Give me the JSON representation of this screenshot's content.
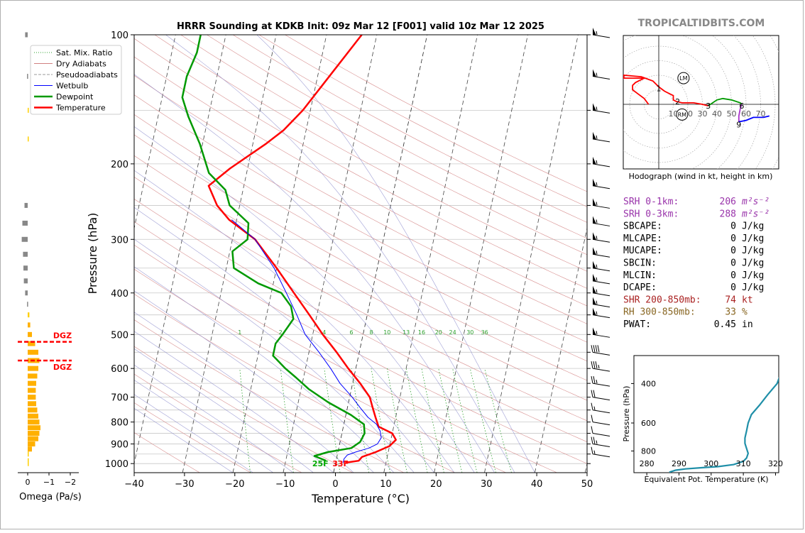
{
  "title": "HRRR Sounding at KDKB Init: 09z Mar 12 [F001] valid 10z Mar 12 2025",
  "watermark": "TROPICALTIDBITS.COM",
  "chart_data": [
    {
      "type": "line",
      "name": "skew-t",
      "xlabel": "Temperature (°C)",
      "ylabel": "Pressure (hPa)",
      "xlim": [
        -40,
        50
      ],
      "ylim": [
        1050,
        100
      ],
      "y_scale": "log",
      "x_ticks": [
        "−40",
        "−30",
        "−20",
        "−10",
        "0",
        "10",
        "20",
        "30",
        "40",
        "50"
      ],
      "y_ticks": [
        "100",
        "200",
        "300",
        "400",
        "500",
        "600",
        "700",
        "800",
        "900",
        "1000"
      ],
      "legend": {
        "placement": "top-left",
        "entries": [
          {
            "label": "Sat. Mix. Ratio",
            "color": "#2ca02c",
            "style": "dotted"
          },
          {
            "label": "Dry Adiabats",
            "color": "#d08080",
            "style": "solid"
          },
          {
            "label": "Pseudoadiabats",
            "color": "#999999",
            "style": "dashed"
          },
          {
            "label": "Wetbulb",
            "color": "#0000ff",
            "style": "solid"
          },
          {
            "label": "Dewpoint",
            "color": "#009900",
            "style": "bold"
          },
          {
            "label": "Temperature",
            "color": "#ff0000",
            "style": "bold"
          }
        ]
      },
      "series": [
        {
          "name": "Temperature",
          "color": "#ff0000",
          "points": [
            [
              2.0,
              995
            ],
            [
              4.5,
              985
            ],
            [
              5.0,
              965
            ],
            [
              7.5,
              940
            ],
            [
              10.0,
              910
            ],
            [
              11.0,
              880
            ],
            [
              10.0,
              850
            ],
            [
              7.0,
              820
            ],
            [
              6.0,
              780
            ],
            [
              5.0,
              740
            ],
            [
              4.0,
              700
            ],
            [
              1.5,
              650
            ],
            [
              -1.5,
              600
            ],
            [
              -4.5,
              550
            ],
            [
              -8.0,
              500
            ],
            [
              -11.5,
              450
            ],
            [
              -15.5,
              400
            ],
            [
              -20.0,
              350
            ],
            [
              -25.5,
              300
            ],
            [
              -31.5,
              270
            ],
            [
              -34.5,
              250
            ],
            [
              -37.0,
              225
            ],
            [
              -33.5,
              205
            ],
            [
              -27.5,
              180
            ],
            [
              -24.5,
              167
            ],
            [
              -21.5,
              150
            ],
            [
              -18.5,
              130
            ],
            [
              -15.0,
              110
            ],
            [
              -13.0,
              100
            ]
          ]
        },
        {
          "name": "Dewpoint",
          "color": "#009900",
          "points": [
            [
              -2.0,
              985
            ],
            [
              -4.5,
              960
            ],
            [
              -2.0,
              940
            ],
            [
              2.5,
              920
            ],
            [
              4.0,
              890
            ],
            [
              4.5,
              850
            ],
            [
              4.0,
              810
            ],
            [
              1.0,
              770
            ],
            [
              -4.0,
              720
            ],
            [
              -8.5,
              670
            ],
            [
              -11.5,
              630
            ],
            [
              -14.0,
              600
            ],
            [
              -17.0,
              560
            ],
            [
              -17.0,
              525
            ],
            [
              -16.0,
              500
            ],
            [
              -14.5,
              460
            ],
            [
              -15.5,
              430
            ],
            [
              -18.0,
              400
            ],
            [
              -23.0,
              380
            ],
            [
              -28.5,
              350
            ],
            [
              -29.5,
              320
            ],
            [
              -27.0,
              300
            ],
            [
              -27.5,
              275
            ],
            [
              -32.0,
              250
            ],
            [
              -33.5,
              230
            ],
            [
              -37.5,
              210
            ],
            [
              -40.5,
              180
            ],
            [
              -44.0,
              155
            ],
            [
              -46.0,
              140
            ],
            [
              -46.0,
              125
            ],
            [
              -45.0,
              110
            ],
            [
              -45.0,
              100
            ]
          ]
        },
        {
          "name": "Wetbulb",
          "color": "#0000ff",
          "points": [
            [
              1.5,
              995
            ],
            [
              1.5,
              975
            ],
            [
              2.0,
              955
            ],
            [
              3.5,
              940
            ],
            [
              6.0,
              920
            ],
            [
              7.5,
              900
            ],
            [
              8.0,
              870
            ],
            [
              7.5,
              840
            ],
            [
              6.5,
              810
            ],
            [
              4.5,
              780
            ],
            [
              2.5,
              740
            ],
            [
              0.5,
              700
            ],
            [
              -2.5,
              650
            ],
            [
              -5.0,
              600
            ],
            [
              -8.0,
              550
            ],
            [
              -11.5,
              500
            ],
            [
              -14.0,
              450
            ],
            [
              -17.0,
              400
            ],
            [
              -20.5,
              350
            ],
            [
              -25.5,
              300
            ],
            [
              -31.0,
              270
            ]
          ]
        }
      ],
      "annotations": [
        {
          "text": "25F",
          "color": "#00aa00",
          "x": -3.0,
          "p": 1000
        },
        {
          "text": "33F",
          "color": "#ff0000",
          "x": 1.0,
          "p": 1000
        }
      ],
      "mixing_ratio_labels": [
        "1",
        "2",
        "4",
        "6",
        "8",
        "10",
        "13",
        "16",
        "20",
        "24",
        "30",
        "36"
      ]
    },
    {
      "type": "bar",
      "name": "omega",
      "xlabel": "Omega (Pa/s)",
      "x_ticks": [
        "0",
        "−1",
        "−2"
      ],
      "xlim": [
        0,
        -2
      ],
      "dgz": {
        "label": "DGZ",
        "top_p": 575,
        "bottom_p": 520,
        "color": "#ff0000"
      },
      "bars": [
        {
          "p": 1000,
          "v": 0.05,
          "c": "#ffd000"
        },
        {
          "p": 985,
          "v": 0.05,
          "c": "#ffd000"
        },
        {
          "p": 950,
          "v": 0.05,
          "c": "#ffd000"
        },
        {
          "p": 925,
          "v": 0.2,
          "c": "#ffb000"
        },
        {
          "p": 900,
          "v": 0.35,
          "c": "#ffb000"
        },
        {
          "p": 875,
          "v": 0.5,
          "c": "#ffb000"
        },
        {
          "p": 850,
          "v": 0.55,
          "c": "#ffb000"
        },
        {
          "p": 825,
          "v": 0.6,
          "c": "#ffb000"
        },
        {
          "p": 800,
          "v": 0.55,
          "c": "#ffb000"
        },
        {
          "p": 775,
          "v": 0.5,
          "c": "#ffb000"
        },
        {
          "p": 750,
          "v": 0.45,
          "c": "#ffb000"
        },
        {
          "p": 725,
          "v": 0.4,
          "c": "#ffb000"
        },
        {
          "p": 700,
          "v": 0.38,
          "c": "#ffb000"
        },
        {
          "p": 675,
          "v": 0.38,
          "c": "#ffb000"
        },
        {
          "p": 650,
          "v": 0.4,
          "c": "#ffb000"
        },
        {
          "p": 625,
          "v": 0.45,
          "c": "#ffb000"
        },
        {
          "p": 600,
          "v": 0.5,
          "c": "#ffb000"
        },
        {
          "p": 575,
          "v": 0.55,
          "c": "#ffb000"
        },
        {
          "p": 550,
          "v": 0.5,
          "c": "#ffb000"
        },
        {
          "p": 525,
          "v": 0.35,
          "c": "#ffb000"
        },
        {
          "p": 500,
          "v": 0.2,
          "c": "#ffb000"
        },
        {
          "p": 475,
          "v": 0.12,
          "c": "#ffb000"
        },
        {
          "p": 450,
          "v": 0.08,
          "c": "#ffd000"
        },
        {
          "p": 425,
          "v": -0.03,
          "c": "#888888"
        },
        {
          "p": 400,
          "v": -0.12,
          "c": "#888888"
        },
        {
          "p": 375,
          "v": -0.18,
          "c": "#888888"
        },
        {
          "p": 350,
          "v": -0.2,
          "c": "#888888"
        },
        {
          "p": 325,
          "v": -0.22,
          "c": "#888888"
        },
        {
          "p": 300,
          "v": -0.28,
          "c": "#888888"
        },
        {
          "p": 275,
          "v": -0.25,
          "c": "#888888"
        },
        {
          "p": 250,
          "v": -0.15,
          "c": "#888888"
        },
        {
          "p": 175,
          "v": 0.03,
          "c": "#ffd000"
        },
        {
          "p": 150,
          "v": 0.03,
          "c": "#ffd000"
        },
        {
          "p": 125,
          "v": -0.03,
          "c": "#888888"
        },
        {
          "p": 100,
          "v": -0.12,
          "c": "#888888"
        }
      ]
    },
    {
      "type": "line",
      "name": "hodograph",
      "caption": "Hodograph (wind in kt, height in km)",
      "ring_labels": [
        "10",
        "20",
        "30",
        "40",
        "50",
        "60",
        "70"
      ],
      "marker_labels": [
        "LM",
        "RM"
      ],
      "markers": [
        {
          "label": "LM",
          "u": 17,
          "v": 18
        },
        {
          "label": "RM",
          "u": 16,
          "v": -7
        }
      ],
      "height_labels": [
        {
          "t": "1",
          "u": 0,
          "v": 11
        },
        {
          "t": "2",
          "u": 13,
          "v": 2
        },
        {
          "t": "3",
          "u": 34,
          "v": -1
        },
        {
          "t": "6",
          "u": 57,
          "v": -1
        },
        {
          "t": "9",
          "u": 55,
          "v": -14
        }
      ],
      "segments": [
        {
          "color": "#ff0000",
          "points": [
            [
              -7,
              0
            ],
            [
              -10,
              4
            ],
            [
              -14,
              7
            ],
            [
              -18,
              10
            ],
            [
              -18,
              13
            ],
            [
              -16,
              15
            ],
            [
              -10,
              18
            ],
            [
              -24,
              18
            ],
            [
              -24,
              20
            ],
            [
              -12,
              19
            ],
            [
              -4,
              16
            ],
            [
              0,
              12
            ],
            [
              4,
              9
            ],
            [
              8,
              7
            ],
            [
              10,
              6
            ],
            [
              10,
              3
            ],
            [
              12,
              2
            ],
            [
              16,
              1
            ],
            [
              24,
              1
            ],
            [
              30,
              0
            ],
            [
              34,
              -1
            ]
          ]
        },
        {
          "color": "#009900",
          "points": [
            [
              34,
              -1
            ],
            [
              37,
              1
            ],
            [
              40,
              3
            ],
            [
              44,
              4
            ],
            [
              50,
              3
            ],
            [
              56,
              1
            ],
            [
              57,
              0
            ]
          ]
        },
        {
          "color": "#aa33cc",
          "points": [
            [
              57,
              0
            ],
            [
              56,
              -3
            ],
            [
              55,
              -8
            ],
            [
              55,
              -12
            ]
          ]
        },
        {
          "color": "#0000ff",
          "points": [
            [
              55,
              -12
            ],
            [
              60,
              -11
            ],
            [
              65,
              -9
            ],
            [
              72,
              -9
            ],
            [
              76,
              -8
            ]
          ]
        }
      ]
    },
    {
      "type": "line",
      "name": "theta-e",
      "xlabel": "Equivalent Pot. Temperature (K)",
      "ylabel": "Pressure (hPa)",
      "xlim": [
        276,
        321
      ],
      "ylim": [
        1000,
        300
      ],
      "x_ticks": [
        "280",
        "290",
        "300",
        "310",
        "320"
      ],
      "y_ticks": [
        "400",
        "600",
        "800"
      ],
      "points": [
        [
          287,
          995
        ],
        [
          289,
          975
        ],
        [
          292,
          962
        ],
        [
          297,
          950
        ],
        [
          302,
          940
        ],
        [
          307,
          920
        ],
        [
          310,
          890
        ],
        [
          311,
          860
        ],
        [
          311.5,
          820
        ],
        [
          311,
          780
        ],
        [
          310.5,
          740
        ],
        [
          310.5,
          700
        ],
        [
          311,
          650
        ],
        [
          311.5,
          600
        ],
        [
          312.5,
          550
        ],
        [
          315,
          500
        ],
        [
          317.5,
          450
        ],
        [
          320.5,
          400
        ],
        [
          322,
          350
        ],
        [
          322.5,
          300
        ]
      ]
    }
  ],
  "stats": [
    {
      "label": "SRH 0-1km:",
      "value": "206",
      "unit": "m²s⁻²",
      "color": "#9933aa"
    },
    {
      "label": "SRH 0-3km:",
      "value": "288",
      "unit": "m²s⁻²",
      "color": "#9933aa"
    },
    {
      "label": "SBCAPE:",
      "value": "0",
      "unit": "J/kg",
      "color": "#000000"
    },
    {
      "label": "MLCAPE:",
      "value": "0",
      "unit": "J/kg",
      "color": "#000000"
    },
    {
      "label": "MUCAPE:",
      "value": "0",
      "unit": "J/kg",
      "color": "#000000"
    },
    {
      "label": "SBCIN:",
      "value": "0",
      "unit": "J/kg",
      "color": "#000000"
    },
    {
      "label": "MLCIN:",
      "value": "0",
      "unit": "J/kg",
      "color": "#000000"
    },
    {
      "label": "DCAPE:",
      "value": "0",
      "unit": "J/kg",
      "color": "#000000"
    },
    {
      "label": "SHR 200-850mb:",
      "value": "74",
      "unit": "kt",
      "color": "#aa2222"
    },
    {
      "label": "RH 300-850mb:",
      "value": "33",
      "unit": "%",
      "color": "#886622"
    },
    {
      "label": "PWAT:",
      "value": "0.45",
      "unit": "in",
      "color": "#000000"
    }
  ],
  "wind_barbs": [
    {
      "p": 100,
      "spd": 55
    },
    {
      "p": 125,
      "spd": 55
    },
    {
      "p": 150,
      "spd": 55
    },
    {
      "p": 175,
      "spd": 55
    },
    {
      "p": 200,
      "spd": 55
    },
    {
      "p": 225,
      "spd": 55
    },
    {
      "p": 250,
      "spd": 55
    },
    {
      "p": 275,
      "spd": 55
    },
    {
      "p": 300,
      "spd": 55
    },
    {
      "p": 325,
      "spd": 55
    },
    {
      "p": 350,
      "spd": 55
    },
    {
      "p": 375,
      "spd": 55
    },
    {
      "p": 400,
      "spd": 55
    },
    {
      "p": 425,
      "spd": 55
    },
    {
      "p": 450,
      "spd": 55
    },
    {
      "p": 500,
      "spd": 55
    },
    {
      "p": 550,
      "spd": 40
    },
    {
      "p": 600,
      "spd": 35
    },
    {
      "p": 650,
      "spd": 25
    },
    {
      "p": 700,
      "spd": 20
    },
    {
      "p": 750,
      "spd": 15
    },
    {
      "p": 800,
      "spd": 10
    },
    {
      "p": 850,
      "spd": 10
    },
    {
      "p": 900,
      "spd": 25
    },
    {
      "p": 950,
      "spd": 15
    }
  ]
}
